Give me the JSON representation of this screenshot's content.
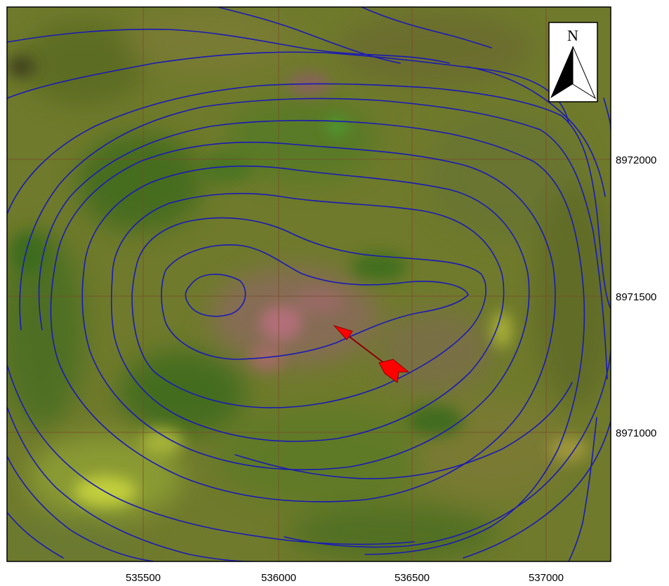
{
  "map": {
    "x_ticks": [
      {
        "value": 535500,
        "label": "535500"
      },
      {
        "value": 536000,
        "label": "536000"
      },
      {
        "value": 536500,
        "label": "536500"
      },
      {
        "value": 537000,
        "label": "537000"
      }
    ],
    "y_ticks": [
      {
        "value": 8972000,
        "label": "8972000"
      },
      {
        "value": 8971500,
        "label": "8971500"
      },
      {
        "value": 8971000,
        "label": "8971000"
      }
    ],
    "grid": true,
    "contour_color": "#1a1ab4",
    "grid_color": "#7a4a2a",
    "imagery_base_color": "#6f7a2c",
    "arrow_color": "#ff0000",
    "north_arrow": {
      "letter": "N",
      "placement": "top-right"
    }
  }
}
